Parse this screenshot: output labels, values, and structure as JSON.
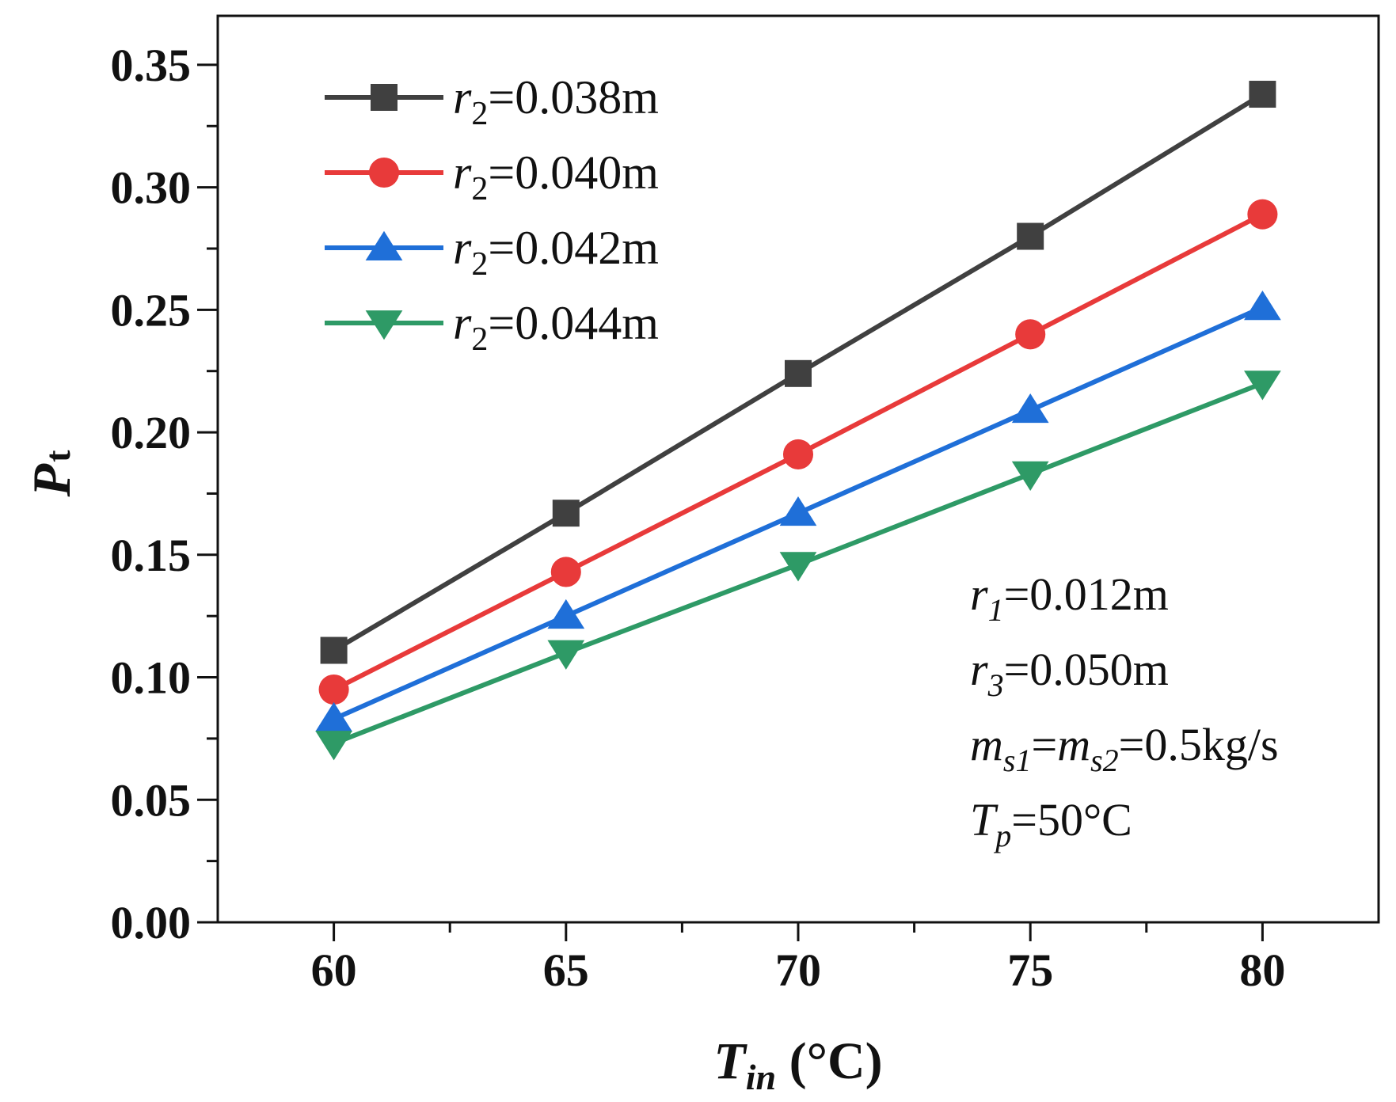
{
  "chart_data": {
    "type": "line",
    "title": "",
    "x": [
      60,
      65,
      70,
      75,
      80
    ],
    "xlim": [
      57.5,
      82.5
    ],
    "ylim": [
      0.0,
      0.37
    ],
    "xticks": [
      "60",
      "65",
      "70",
      "75",
      "80"
    ],
    "yticks": [
      "0.00",
      "0.05",
      "0.10",
      "0.15",
      "0.20",
      "0.25",
      "0.30",
      "0.35"
    ],
    "ytick_values": [
      0.0,
      0.05,
      0.1,
      0.15,
      0.2,
      0.25,
      0.3,
      0.35
    ],
    "xlabel": {
      "main": "T",
      "sub": "in",
      "unit": " (°C)"
    },
    "ylabel": {
      "main": "P",
      "sub": "t"
    },
    "grid": false,
    "legend": {
      "position": "top-left",
      "entries": [
        {
          "base": "r",
          "sub": "2",
          "rest": "=0.038m"
        },
        {
          "base": "r",
          "sub": "2",
          "rest": "=0.040m"
        },
        {
          "base": "r",
          "sub": "2",
          "rest": "=0.042m"
        },
        {
          "base": "r",
          "sub": "2",
          "rest": "=0.044m"
        }
      ]
    },
    "series": [
      {
        "name": "r2=0.038m",
        "color": "#404040",
        "marker": "square",
        "values": [
          0.111,
          0.167,
          0.224,
          0.28,
          0.338
        ]
      },
      {
        "name": "r2=0.040m",
        "color": "#e83a3a",
        "marker": "circle",
        "values": [
          0.095,
          0.143,
          0.191,
          0.24,
          0.289
        ]
      },
      {
        "name": "r2=0.042m",
        "color": "#1f6fd8",
        "marker": "triangle-up",
        "values": [
          0.083,
          0.125,
          0.167,
          0.209,
          0.251
        ]
      },
      {
        "name": "r2=0.044m",
        "color": "#2e9a66",
        "marker": "triangle-down",
        "values": [
          0.073,
          0.11,
          0.146,
          0.183,
          0.22
        ]
      }
    ],
    "annotations": [
      [
        {
          "t": "r",
          "style": "italic"
        },
        {
          "t": "1",
          "style": "sub-italic"
        },
        {
          "t": "=0.012m",
          "style": "normal"
        }
      ],
      [
        {
          "t": "r",
          "style": "italic"
        },
        {
          "t": "3",
          "style": "sub-italic"
        },
        {
          "t": "=0.050m",
          "style": "normal"
        }
      ],
      [
        {
          "t": "m",
          "style": "italic"
        },
        {
          "t": "s1",
          "style": "sub-italic"
        },
        {
          "t": "=",
          "style": "normal"
        },
        {
          "t": "m",
          "style": "italic"
        },
        {
          "t": "s2",
          "style": "sub-italic"
        },
        {
          "t": "=0.5kg/s",
          "style": "normal"
        }
      ],
      [
        {
          "t": "T",
          "style": "italic"
        },
        {
          "t": "p",
          "style": "sub-italic"
        },
        {
          "t": "=50°C",
          "style": "normal"
        }
      ]
    ]
  }
}
